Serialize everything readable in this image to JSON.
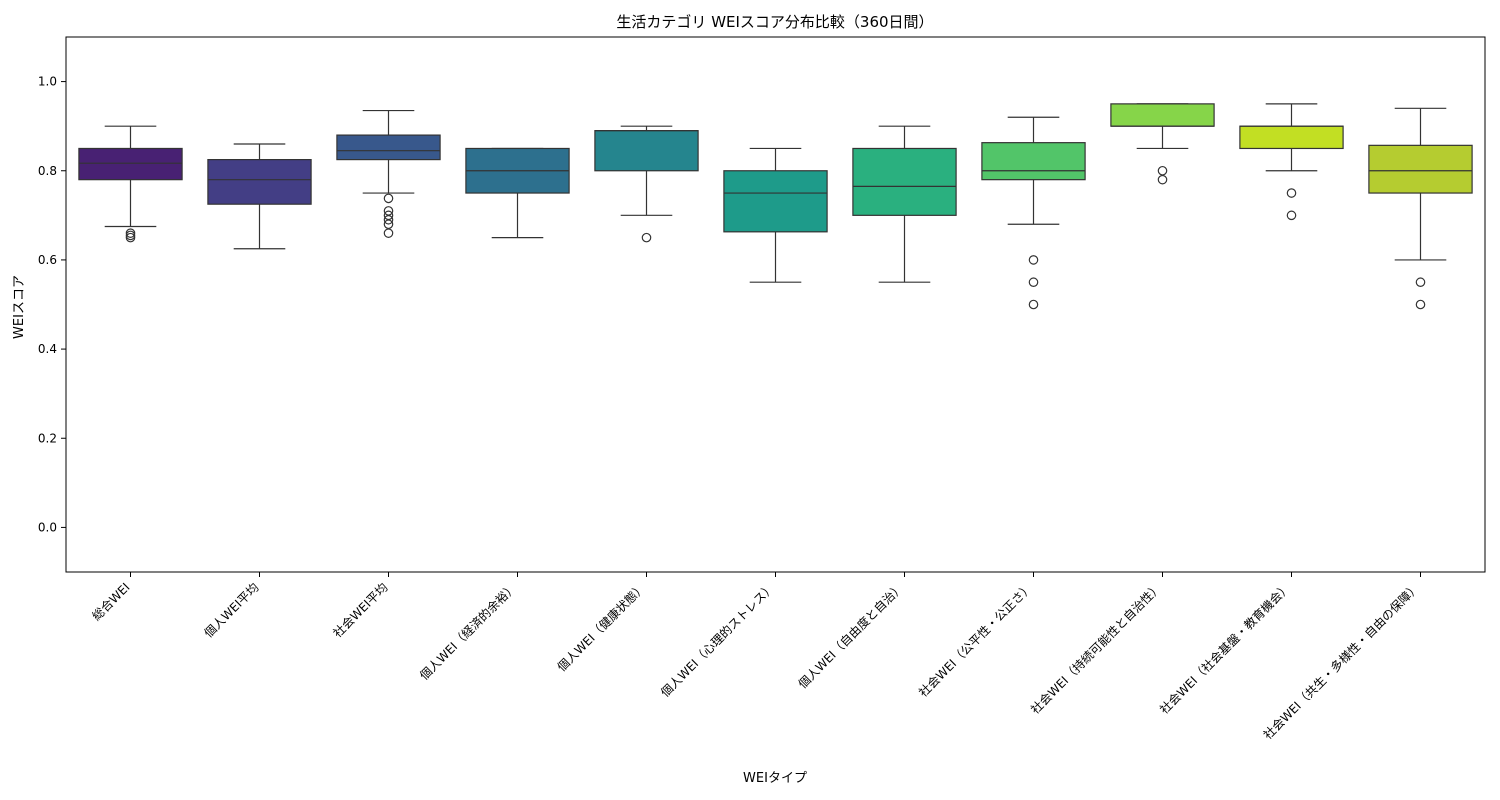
{
  "chart_data": {
    "type": "box",
    "title": "生活カテゴリ WEIスコア分布比較（360日間）",
    "xlabel": "WEIタイプ",
    "ylabel": "WEIスコア",
    "ylim": [
      -0.1,
      1.1
    ],
    "yticks": [
      "0.0",
      "0.2",
      "0.4",
      "0.6",
      "0.8",
      "1.0"
    ],
    "grid": false,
    "categories": [
      "総合WEI",
      "個人WEI平均",
      "社会WEI平均",
      "個人WEI（経済的余裕）",
      "個人WEI（健康状態）",
      "個人WEI（心理的ストレス）",
      "個人WEI（自由度と自治）",
      "社会WEI（公平性・公正さ）",
      "社会WEI（持続可能性と自治性）",
      "社会WEI（社会基盤・教育機会）",
      "社会WEI（共生・多様性・自由の保障）"
    ],
    "boxes": [
      {
        "min": 0.675,
        "q1": 0.78,
        "median": 0.817,
        "q3": 0.85,
        "max": 0.9,
        "outliers": [
          0.66,
          0.655,
          0.65
        ],
        "color": "#482173"
      },
      {
        "min": 0.625,
        "q1": 0.725,
        "median": 0.78,
        "q3": 0.825,
        "max": 0.86,
        "outliers": [],
        "color": "#433e85"
      },
      {
        "min": 0.75,
        "q1": 0.825,
        "median": 0.845,
        "q3": 0.88,
        "max": 0.935,
        "outliers": [
          0.738,
          0.71,
          0.7,
          0.69,
          0.68,
          0.66
        ],
        "color": "#38588c"
      },
      {
        "min": 0.65,
        "q1": 0.75,
        "median": 0.8,
        "q3": 0.85,
        "max": 0.85,
        "outliers": [],
        "color": "#2d708e"
      },
      {
        "min": 0.7,
        "q1": 0.8,
        "median": 0.89,
        "q3": 0.89,
        "max": 0.9,
        "outliers": [
          0.65
        ],
        "color": "#25858e"
      },
      {
        "min": 0.55,
        "q1": 0.663,
        "median": 0.75,
        "q3": 0.8,
        "max": 0.85,
        "outliers": [],
        "color": "#1e9b8a"
      },
      {
        "min": 0.55,
        "q1": 0.7,
        "median": 0.765,
        "q3": 0.85,
        "max": 0.9,
        "outliers": [],
        "color": "#2ab07f"
      },
      {
        "min": 0.68,
        "q1": 0.78,
        "median": 0.8,
        "q3": 0.863,
        "max": 0.92,
        "outliers": [
          0.6,
          0.55,
          0.5
        ],
        "color": "#52c569"
      },
      {
        "min": 0.85,
        "q1": 0.9,
        "median": 0.9,
        "q3": 0.95,
        "max": 0.95,
        "outliers": [
          0.8,
          0.78
        ],
        "color": "#86d549"
      },
      {
        "min": 0.8,
        "q1": 0.85,
        "median": 0.9,
        "q3": 0.9,
        "max": 0.95,
        "outliers": [
          0.75,
          0.7
        ],
        "color": "#c2df23"
      },
      {
        "min": 0.6,
        "q1": 0.75,
        "median": 0.8,
        "q3": 0.857,
        "max": 0.94,
        "outliers": [
          0.55,
          0.5
        ],
        "color": "#b5cc30"
      }
    ]
  }
}
